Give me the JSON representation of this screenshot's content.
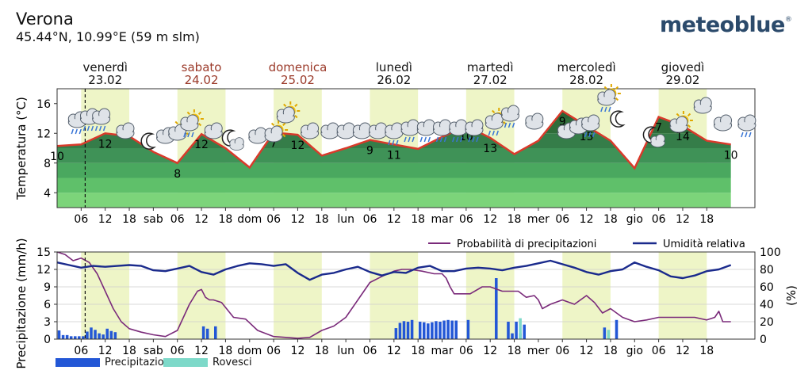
{
  "header": {
    "city": "Verona",
    "coords": "45.44°N, 10.99°E (59 m slm)",
    "brand": "meteoblue",
    "brand_mark": "®"
  },
  "colors": {
    "weekday": "#111111",
    "weekend": "#9b3a2a",
    "temp_line": "#d93a2b",
    "band_dark": "#2f6d3a",
    "band_light": "#7cd47a",
    "day_shade": "#eef5c7",
    "precip_bar": "#2357d6",
    "showers_bar": "#7dd9c9",
    "prob_line": "#7a2a7a",
    "humidity_line": "#1a2a8c"
  },
  "days": [
    {
      "name": "venerdì",
      "date": "23.02",
      "weekend": false
    },
    {
      "name": "sabato",
      "date": "24.02",
      "weekend": true
    },
    {
      "name": "domenica",
      "date": "25.02",
      "weekend": true
    },
    {
      "name": "lunedì",
      "date": "26.02",
      "weekend": false
    },
    {
      "name": "martedì",
      "date": "27.02",
      "weekend": false
    },
    {
      "name": "mercoledì",
      "date": "28.02",
      "weekend": false
    },
    {
      "name": "giovedì",
      "date": "29.02",
      "weekend": false
    }
  ],
  "chart_data": [
    {
      "type": "area",
      "title": "",
      "ylabel": "Temperatura (°C)",
      "ylim": [
        2,
        18
      ],
      "yticks": [
        4,
        8,
        12,
        16
      ],
      "x_labels": [
        "06",
        "12",
        "18",
        "sab",
        "06",
        "12",
        "18",
        "dom",
        "06",
        "12",
        "18",
        "lun",
        "06",
        "12",
        "18",
        "mar",
        "06",
        "12",
        "18",
        "mer",
        "06",
        "12",
        "18",
        "gio",
        "06",
        "12",
        "18"
      ],
      "series": [
        {
          "name": "",
          "x_hours": [
            0,
            6,
            12,
            18,
            24,
            30,
            36,
            42,
            48,
            54,
            60,
            66,
            72,
            78,
            84,
            90,
            96,
            102,
            108,
            114,
            120,
            126,
            132,
            138,
            144,
            150,
            156,
            162,
            168
          ],
          "values": [
            10.3,
            10.5,
            12.0,
            11.6,
            9.5,
            8.0,
            11.9,
            10.0,
            7.4,
            12.1,
            11.8,
            9.0,
            10.0,
            11.1,
            10.5,
            9.9,
            11.5,
            13.0,
            11.4,
            9.2,
            11.0,
            15.0,
            13.0,
            11.0,
            7.3,
            14.2,
            13.0,
            11.0,
            10.5
          ]
        }
      ],
      "annotations": [
        {
          "hour": 0,
          "label": "10"
        },
        {
          "hour": 12,
          "label": "12"
        },
        {
          "hour": 30,
          "label": "8"
        },
        {
          "hour": 36,
          "label": "12"
        },
        {
          "hour": 54,
          "label": "7"
        },
        {
          "hour": 60,
          "label": "12"
        },
        {
          "hour": 78,
          "label": "9"
        },
        {
          "hour": 84,
          "label": "11"
        },
        {
          "hour": 102,
          "label": "10"
        },
        {
          "hour": 108,
          "label": "13"
        },
        {
          "hour": 126,
          "label": "9"
        },
        {
          "hour": 132,
          "label": "15"
        },
        {
          "hour": 150,
          "label": "7"
        },
        {
          "hour": 156,
          "label": "14"
        },
        {
          "hour": 168,
          "label": "10"
        }
      ]
    },
    {
      "type": "bar",
      "title": "",
      "ylabel": "Precipitazione (mm/h)",
      "ylabel_right": "(%)",
      "ylim": [
        0,
        15
      ],
      "ylim_right": [
        0,
        100
      ],
      "yticks": [
        0,
        3,
        6,
        9,
        12,
        15
      ],
      "yticks_right": [
        0,
        20,
        40,
        60,
        80,
        100
      ],
      "series": [
        {
          "name": "Precipitazione",
          "x_hours": [
            0,
            1,
            2,
            3,
            4,
            5,
            6,
            7,
            8,
            9,
            10,
            11,
            12,
            13,
            14,
            36,
            37,
            39,
            84,
            85,
            86,
            87,
            88,
            90,
            91,
            92,
            93,
            94,
            95,
            96,
            97,
            98,
            99,
            102,
            109,
            112,
            113,
            114,
            115,
            116,
            136,
            139
          ],
          "values": [
            1.5,
            0.7,
            0.7,
            0.5,
            0.5,
            0.5,
            0.5,
            1.3,
            2.0,
            1.6,
            1.0,
            0.8,
            1.8,
            1.4,
            1.2,
            2.2,
            1.8,
            2.2,
            1.9,
            2.8,
            3.1,
            3.0,
            3.3,
            3.0,
            2.9,
            2.7,
            2.9,
            3.1,
            3.0,
            3.2,
            3.3,
            3.2,
            3.2,
            3.3,
            10.5,
            3.0,
            1.0,
            3.0,
            1.0,
            2.5,
            2.0,
            3.3
          ]
        },
        {
          "name": "Rovesci",
          "x_hours": [
            115,
            137
          ],
          "values": [
            3.6,
            1.6
          ]
        },
        {
          "name": "Probabilità di precipitazioni",
          "type": "line",
          "x_hours": [
            0,
            2,
            4,
            6,
            8,
            10,
            12,
            14,
            16,
            18,
            21,
            24,
            27,
            30,
            33,
            35,
            36,
            37,
            38,
            39,
            41,
            44,
            47,
            50,
            54,
            57,
            60,
            63,
            66,
            69,
            72,
            75,
            78,
            81,
            84,
            86,
            88,
            91,
            94,
            96,
            97,
            98,
            99,
            100,
            103,
            106,
            108,
            111,
            113,
            115,
            117,
            119,
            120,
            121,
            123,
            126,
            129,
            132,
            134,
            136,
            138,
            141,
            144,
            147,
            150,
            153,
            156,
            159,
            162,
            164,
            165,
            166,
            167,
            168
          ],
          "values": [
            100,
            97,
            90,
            93,
            88,
            75,
            55,
            35,
            20,
            12,
            8,
            5,
            3,
            10,
            40,
            55,
            57,
            48,
            45,
            45,
            42,
            25,
            23,
            10,
            3,
            2,
            1,
            2,
            10,
            15,
            25,
            45,
            65,
            72,
            78,
            80,
            80,
            78,
            75,
            75,
            70,
            60,
            52,
            52,
            52,
            60,
            60,
            55,
            55,
            55,
            48,
            50,
            45,
            35,
            40,
            45,
            40,
            50,
            42,
            30,
            35,
            25,
            20,
            22,
            25,
            25,
            25,
            25,
            22,
            25,
            32,
            20,
            20,
            20
          ]
        },
        {
          "name": "Umidità relativa",
          "type": "line",
          "x_hours": [
            0,
            3,
            6,
            9,
            12,
            15,
            18,
            21,
            24,
            27,
            30,
            33,
            36,
            39,
            42,
            45,
            48,
            51,
            54,
            57,
            60,
            63,
            66,
            69,
            72,
            75,
            78,
            81,
            84,
            87,
            90,
            93,
            96,
            99,
            102,
            105,
            108,
            111,
            114,
            117,
            120,
            123,
            126,
            129,
            132,
            135,
            138,
            141,
            144,
            147,
            150,
            153,
            156,
            159,
            162,
            165,
            168
          ],
          "values": [
            88,
            85,
            82,
            84,
            83,
            84,
            85,
            84,
            79,
            78,
            81,
            84,
            77,
            74,
            80,
            84,
            87,
            86,
            84,
            86,
            76,
            68,
            74,
            76,
            80,
            83,
            77,
            73,
            77,
            76,
            82,
            84,
            78,
            78,
            81,
            82,
            81,
            79,
            82,
            84,
            87,
            90,
            86,
            82,
            77,
            74,
            78,
            80,
            88,
            83,
            79,
            72,
            70,
            73,
            78,
            80,
            85
          ]
        }
      ]
    }
  ],
  "legend": {
    "prob_label": "Probabilità di precipitazioni",
    "humidity_label": "Umidità relativa",
    "precip_label": "Precipitazione",
    "showers_label": "Rovesci"
  },
  "icons": [
    "moon-cloud-icon",
    "rain-cloud-icon",
    "cloud-icon",
    "sun-cloud-icon",
    "sun-rain-cloud-icon",
    "thunderstorm-icon"
  ]
}
